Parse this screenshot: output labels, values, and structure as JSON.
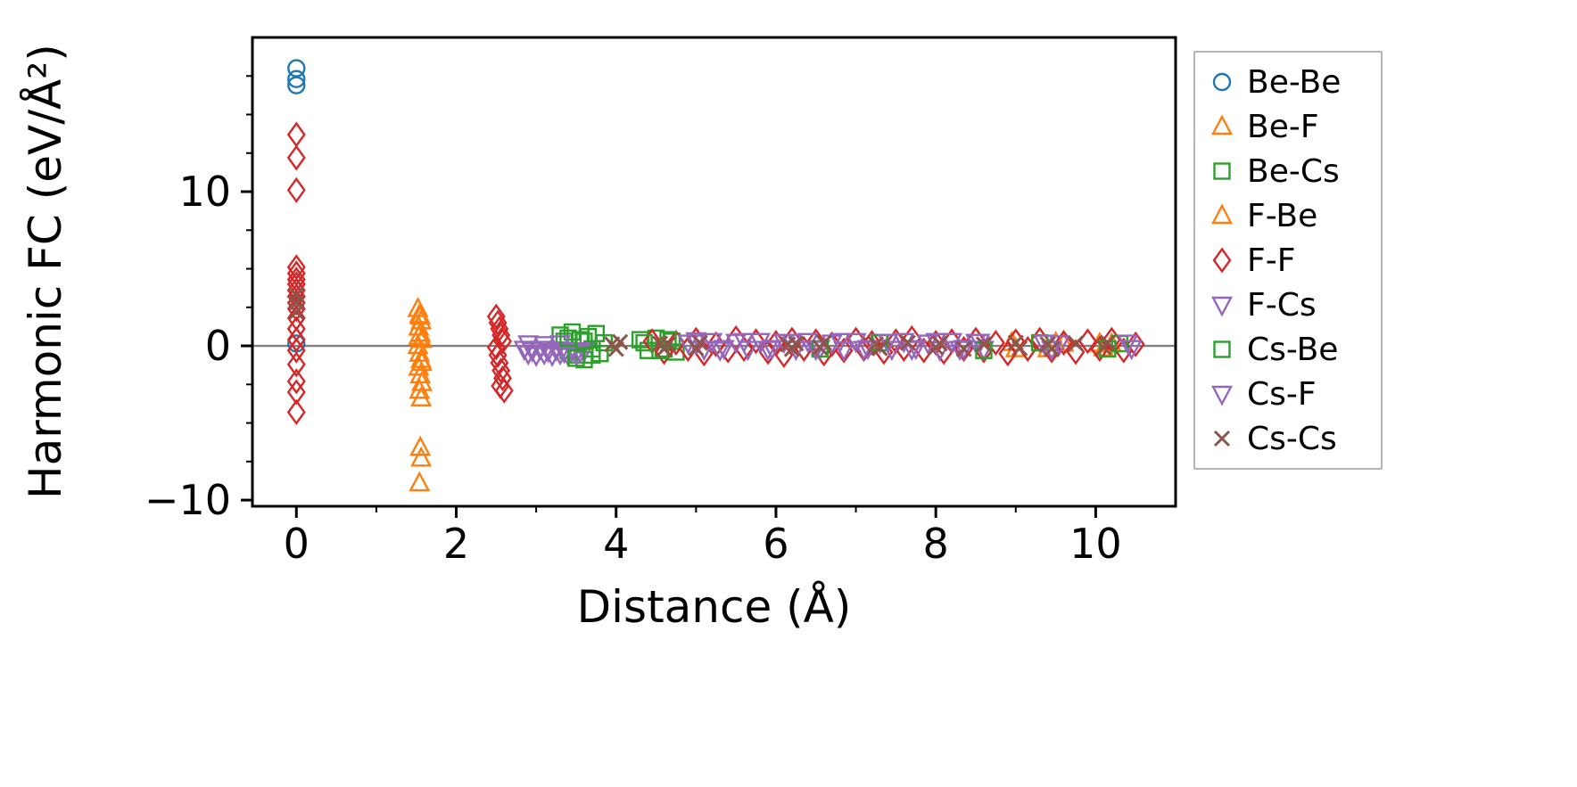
{
  "chart_data": {
    "type": "scatter",
    "title": "",
    "xlabel": "Distance (Å)",
    "ylabel": "Harmonic FC (eV/Å²)",
    "xlim": [
      -0.55,
      11.0
    ],
    "ylim": [
      -10.4,
      20.0
    ],
    "xticks": [
      0,
      2,
      4,
      6,
      8,
      10
    ],
    "yticks": [
      -10,
      0,
      10
    ],
    "x_minor_ticks": [
      1,
      3,
      5,
      7,
      9
    ],
    "y_minor_ticks": [
      -7.5,
      -5,
      -2.5,
      2.5,
      5,
      7.5,
      12.5,
      15,
      17.5
    ],
    "grid": false,
    "zero_line": {
      "y": 0,
      "color": "#808080"
    },
    "legend_position": "right-outside",
    "axis_color": "#000000",
    "series": [
      {
        "name": "Be-Be",
        "marker": "circle",
        "color": "#1f77b4",
        "points": [
          [
            0,
            18.0
          ],
          [
            0,
            17.3
          ],
          [
            0,
            16.9
          ],
          [
            0,
            0.15
          ]
        ]
      },
      {
        "name": "Be-F",
        "marker": "triangle-up",
        "color": "#ff7f0e",
        "points": [
          [
            1.52,
            2.4
          ],
          [
            1.54,
            2.0
          ],
          [
            1.56,
            1.6
          ],
          [
            1.53,
            1.2
          ],
          [
            1.55,
            0.8
          ],
          [
            1.57,
            0.4
          ],
          [
            1.52,
            0.0
          ],
          [
            1.54,
            -0.5
          ],
          [
            1.56,
            -0.9
          ],
          [
            1.53,
            -1.4
          ],
          [
            1.55,
            -1.9
          ],
          [
            1.57,
            -2.4
          ],
          [
            1.54,
            -2.9
          ],
          [
            1.56,
            -3.4
          ],
          [
            8.95,
            0.2
          ],
          [
            9.4,
            -0.2
          ],
          [
            9.6,
            0.15
          ],
          [
            10.1,
            -0.15
          ],
          [
            10.2,
            0.1
          ]
        ]
      },
      {
        "name": "Be-Cs",
        "marker": "square",
        "color": "#2ca02c",
        "points": [
          [
            3.3,
            0.7
          ],
          [
            3.35,
            0.3
          ],
          [
            3.4,
            -0.3
          ],
          [
            3.45,
            0.9
          ],
          [
            3.5,
            -0.6
          ],
          [
            3.55,
            0.4
          ],
          [
            3.6,
            -0.9
          ],
          [
            3.65,
            0.6
          ],
          [
            3.7,
            -0.2
          ],
          [
            3.75,
            0.8
          ],
          [
            3.8,
            -0.5
          ],
          [
            3.85,
            0.2
          ],
          [
            4.3,
            0.4
          ],
          [
            4.4,
            -0.3
          ],
          [
            4.5,
            0.5
          ],
          [
            4.6,
            -0.2
          ],
          [
            4.7,
            0.3
          ],
          [
            4.75,
            -0.4
          ]
        ]
      },
      {
        "name": "F-Be",
        "marker": "triangle-up",
        "color": "#ff7f0e",
        "points": [
          [
            1.55,
            1.9
          ],
          [
            1.53,
            0.6
          ],
          [
            1.57,
            -1.1
          ],
          [
            1.55,
            -6.6
          ],
          [
            1.56,
            -7.3
          ],
          [
            1.54,
            -8.9
          ],
          [
            9.0,
            -0.2
          ],
          [
            9.5,
            0.2
          ],
          [
            10.05,
            0.15
          ]
        ]
      },
      {
        "name": "F-F",
        "marker": "diamond",
        "color": "#d62728",
        "points": [
          [
            0,
            13.7
          ],
          [
            0,
            12.2
          ],
          [
            0,
            10.1
          ],
          [
            0,
            5.1
          ],
          [
            0,
            4.7
          ],
          [
            0,
            4.3
          ],
          [
            0,
            4.0
          ],
          [
            0,
            3.6
          ],
          [
            0,
            3.2
          ],
          [
            0,
            2.8
          ],
          [
            0,
            2.4
          ],
          [
            0,
            1.8
          ],
          [
            0,
            1.1
          ],
          [
            0,
            0.4
          ],
          [
            0,
            -0.3
          ],
          [
            0,
            -1.2
          ],
          [
            0,
            -2.3
          ],
          [
            0,
            -3.0
          ],
          [
            0,
            -4.3
          ],
          [
            2.5,
            1.9
          ],
          [
            2.52,
            1.5
          ],
          [
            2.54,
            1.1
          ],
          [
            2.56,
            0.7
          ],
          [
            2.58,
            0.3
          ],
          [
            2.5,
            -0.1
          ],
          [
            2.52,
            -0.6
          ],
          [
            2.54,
            -1.1
          ],
          [
            2.56,
            -1.6
          ],
          [
            2.58,
            -2.1
          ],
          [
            2.55,
            -2.6
          ],
          [
            2.6,
            -2.9
          ],
          [
            4.45,
            0.3
          ],
          [
            4.6,
            -0.4
          ],
          [
            4.75,
            0.2
          ],
          [
            4.9,
            -0.2
          ],
          [
            5.0,
            0.4
          ],
          [
            5.1,
            -0.5
          ],
          [
            5.25,
            0.1
          ],
          [
            5.4,
            -0.3
          ],
          [
            5.5,
            0.5
          ],
          [
            5.6,
            -0.2
          ],
          [
            5.75,
            0.3
          ],
          [
            5.9,
            -0.4
          ],
          [
            6.0,
            0.2
          ],
          [
            6.1,
            -0.6
          ],
          [
            6.2,
            0.4
          ],
          [
            6.35,
            -0.2
          ],
          [
            6.5,
            0.3
          ],
          [
            6.6,
            -0.5
          ],
          [
            6.7,
            0.1
          ],
          [
            6.85,
            -0.3
          ],
          [
            7.0,
            0.4
          ],
          [
            7.1,
            -0.2
          ],
          [
            7.2,
            0.2
          ],
          [
            7.35,
            -0.4
          ],
          [
            7.5,
            0.3
          ],
          [
            7.6,
            -0.2
          ],
          [
            7.7,
            0.5
          ],
          [
            7.85,
            -0.3
          ],
          [
            8.0,
            0.2
          ],
          [
            8.1,
            -0.4
          ],
          [
            8.2,
            0.3
          ],
          [
            8.35,
            -0.2
          ],
          [
            8.5,
            0.4
          ],
          [
            8.6,
            -0.3
          ],
          [
            8.75,
            0.2
          ],
          [
            8.9,
            -0.5
          ],
          [
            9.0,
            0.3
          ],
          [
            9.15,
            -0.2
          ],
          [
            9.3,
            0.4
          ],
          [
            9.45,
            -0.3
          ],
          [
            9.6,
            0.2
          ],
          [
            9.75,
            -0.4
          ],
          [
            9.9,
            0.3
          ],
          [
            10.05,
            -0.2
          ],
          [
            10.2,
            0.4
          ],
          [
            10.35,
            -0.3
          ],
          [
            10.5,
            0.1
          ]
        ]
      },
      {
        "name": "F-Cs",
        "marker": "triangle-down",
        "color": "#9467bd",
        "points": [
          [
            2.85,
            -0.2
          ],
          [
            2.9,
            -0.5
          ],
          [
            2.95,
            -0.3
          ],
          [
            3.0,
            -0.6
          ],
          [
            3.05,
            -0.2
          ],
          [
            3.1,
            -0.5
          ],
          [
            3.15,
            -0.35
          ],
          [
            3.2,
            -0.6
          ],
          [
            3.25,
            -0.25
          ],
          [
            3.3,
            -0.5
          ],
          [
            3.35,
            -0.4
          ],
          [
            3.4,
            -0.6
          ],
          [
            3.45,
            -0.3
          ],
          [
            3.5,
            -0.5
          ],
          [
            3.55,
            -0.4
          ],
          [
            3.6,
            -0.3
          ],
          [
            2.9,
            0.15
          ],
          [
            3.1,
            0.1
          ],
          [
            3.3,
            0.15
          ],
          [
            4.9,
            0.2
          ],
          [
            5.0,
            0.35
          ],
          [
            5.1,
            -0.2
          ],
          [
            5.2,
            0.3
          ],
          [
            5.35,
            -0.15
          ],
          [
            5.5,
            0.25
          ],
          [
            5.65,
            -0.2
          ],
          [
            5.8,
            0.3
          ],
          [
            5.95,
            -0.15
          ],
          [
            6.1,
            0.25
          ],
          [
            6.25,
            -0.2
          ],
          [
            6.4,
            0.3
          ],
          [
            6.55,
            -0.15
          ],
          [
            6.7,
            0.2
          ],
          [
            6.85,
            -0.25
          ],
          [
            7.0,
            0.3
          ],
          [
            7.15,
            -0.15
          ],
          [
            7.3,
            0.25
          ],
          [
            7.45,
            -0.2
          ],
          [
            7.6,
            0.3
          ],
          [
            7.75,
            -0.15
          ],
          [
            7.9,
            0.2
          ],
          [
            8.05,
            -0.25
          ],
          [
            8.2,
            0.3
          ],
          [
            8.35,
            -0.15
          ],
          [
            8.5,
            0.25
          ],
          [
            8.6,
            -0.2
          ]
        ]
      },
      {
        "name": "Cs-Be",
        "marker": "square",
        "color": "#2ca02c",
        "points": [
          [
            3.4,
            0.5
          ],
          [
            3.5,
            -0.8
          ],
          [
            3.6,
            0.3
          ],
          [
            3.7,
            -0.6
          ],
          [
            4.35,
            0.2
          ],
          [
            4.55,
            -0.3
          ],
          [
            4.65,
            0.4
          ],
          [
            6.55,
            -0.2
          ],
          [
            7.3,
            0.2
          ],
          [
            8.6,
            -0.3
          ],
          [
            9.3,
            0.2
          ],
          [
            10.15,
            -0.2
          ],
          [
            10.3,
            0.15
          ]
        ]
      },
      {
        "name": "Cs-F",
        "marker": "triangle-down",
        "color": "#9467bd",
        "points": [
          [
            5.0,
            0.2
          ],
          [
            5.3,
            -0.25
          ],
          [
            5.6,
            0.3
          ],
          [
            5.9,
            -0.2
          ],
          [
            6.2,
            0.25
          ],
          [
            6.5,
            -0.2
          ],
          [
            6.8,
            0.3
          ],
          [
            7.1,
            -0.2
          ],
          [
            7.4,
            0.25
          ],
          [
            7.7,
            -0.2
          ],
          [
            8.0,
            0.3
          ],
          [
            8.3,
            -0.2
          ],
          [
            8.55,
            0.25
          ],
          [
            9.35,
            0.2
          ],
          [
            9.45,
            -0.2
          ],
          [
            9.55,
            0.15
          ],
          [
            10.4,
            0.2
          ],
          [
            10.45,
            -0.15
          ]
        ]
      },
      {
        "name": "Cs-Cs",
        "marker": "x",
        "color": "#8c564b",
        "points": [
          [
            0,
            3.3
          ],
          [
            0,
            2.8
          ],
          [
            0,
            2.2
          ],
          [
            3.95,
            0.1
          ],
          [
            4.0,
            -0.2
          ],
          [
            4.05,
            0.25
          ],
          [
            4.55,
            0.15
          ],
          [
            4.6,
            -0.2
          ],
          [
            4.65,
            0.1
          ],
          [
            5.0,
            -0.15
          ],
          [
            5.05,
            0.2
          ],
          [
            6.15,
            0.1
          ],
          [
            6.2,
            -0.2
          ],
          [
            6.25,
            0.15
          ],
          [
            6.55,
            -0.1
          ],
          [
            6.6,
            0.2
          ],
          [
            7.25,
            0.1
          ],
          [
            7.3,
            -0.15
          ],
          [
            7.65,
            0.2
          ],
          [
            8.0,
            -0.1
          ],
          [
            8.05,
            0.15
          ],
          [
            8.35,
            -0.2
          ],
          [
            8.6,
            0.1
          ],
          [
            9.0,
            0.2
          ],
          [
            9.05,
            -0.15
          ],
          [
            9.4,
            0.1
          ],
          [
            9.45,
            -0.2
          ],
          [
            9.75,
            0.15
          ],
          [
            10.1,
            -0.1
          ],
          [
            10.15,
            0.2
          ]
        ]
      }
    ]
  }
}
